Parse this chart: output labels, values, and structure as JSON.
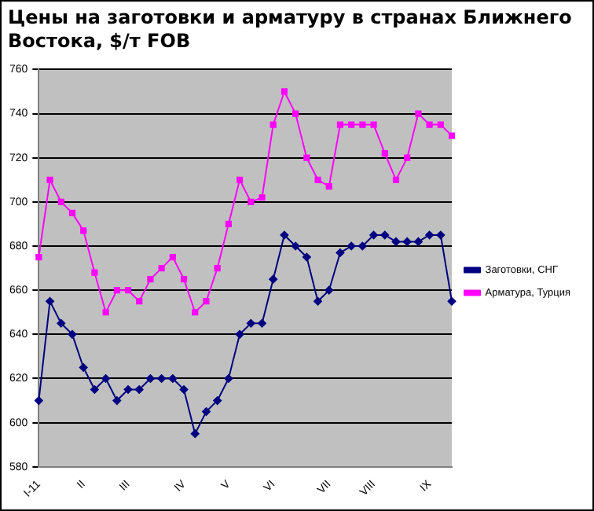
{
  "chart_data": {
    "type": "line",
    "title": "Цены на заготовки и арматуру в странах Ближнего Востока, $/т FOB",
    "categories": [
      "I-11",
      null,
      null,
      null,
      "II",
      null,
      null,
      null,
      "III",
      null,
      null,
      null,
      null,
      "IV",
      null,
      null,
      null,
      "V",
      null,
      null,
      null,
      "VI",
      null,
      null,
      null,
      null,
      "VII",
      null,
      null,
      null,
      "VIII",
      null,
      null,
      null,
      null,
      "IX",
      null,
      null
    ],
    "series": [
      {
        "name": "Заготовки, СНГ",
        "color": "#000080",
        "marker": "diamond",
        "values": [
          610,
          655,
          645,
          640,
          625,
          615,
          620,
          610,
          615,
          615,
          620,
          620,
          620,
          615,
          595,
          605,
          610,
          620,
          640,
          645,
          645,
          665,
          685,
          680,
          675,
          655,
          660,
          677,
          680,
          680,
          685,
          685,
          682,
          682,
          682,
          685,
          685,
          655
        ]
      },
      {
        "name": "Арматура, Турция",
        "color": "#ff00ff",
        "marker": "square",
        "values": [
          675,
          710,
          700,
          695,
          687,
          668,
          650,
          660,
          660,
          655,
          665,
          670,
          675,
          665,
          650,
          655,
          670,
          690,
          710,
          700,
          702,
          735,
          750,
          740,
          720,
          710,
          707,
          735,
          735,
          735,
          735,
          722,
          710,
          720,
          740,
          735,
          735,
          730
        ]
      }
    ],
    "ylim": [
      580,
      760
    ],
    "yticks": [
      580,
      600,
      620,
      640,
      660,
      680,
      700,
      720,
      740,
      760
    ],
    "grid": "y",
    "legend": "right",
    "line_style": "solid"
  }
}
